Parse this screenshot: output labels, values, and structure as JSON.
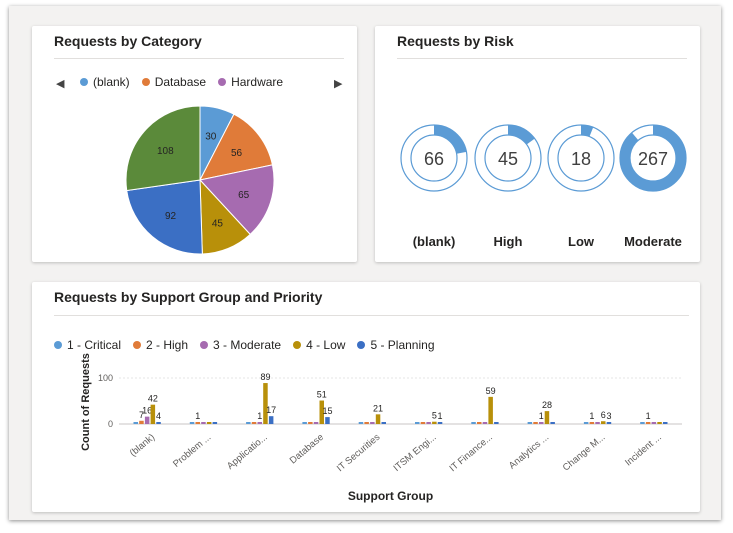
{
  "category_card": {
    "title": "Requests by Category",
    "legend": [
      {
        "label": "(blank)",
        "color": "#5b9bd5"
      },
      {
        "label": "Database",
        "color": "#e07b39"
      },
      {
        "label": "Hardware",
        "color": "#a66bb0"
      }
    ]
  },
  "risk_card": {
    "title": "Requests by Risk"
  },
  "support_card": {
    "title": "Requests by Support Group and Priority",
    "legend": [
      {
        "label": "1 - Critical",
        "color": "#5b9bd5"
      },
      {
        "label": "2 - High",
        "color": "#e07b39"
      },
      {
        "label": "3 - Moderate",
        "color": "#a66bb0"
      },
      {
        "label": "4 - Low",
        "color": "#b8900a"
      },
      {
        "label": "5 - Planning",
        "color": "#3b6fc4"
      }
    ]
  },
  "chart_data": [
    {
      "type": "pie",
      "title": "Requests by Category",
      "slices": [
        {
          "value": 30,
          "color": "#5b9bd5"
        },
        {
          "value": 56,
          "color": "#e07b39"
        },
        {
          "value": 65,
          "color": "#a66bb0"
        },
        {
          "value": 45,
          "color": "#b8900a"
        },
        {
          "value": 92,
          "color": "#3b6fc4"
        },
        {
          "value": 108,
          "color": "#5b8a3a"
        }
      ]
    },
    {
      "type": "gauge",
      "title": "Requests by Risk",
      "max": 300,
      "color": "#5b9bd5",
      "items": [
        {
          "label": "(blank)",
          "value": 66
        },
        {
          "label": "High",
          "value": 45
        },
        {
          "label": "Low",
          "value": 18
        },
        {
          "label": "Moderate",
          "value": 267
        }
      ]
    },
    {
      "type": "bar",
      "title": "Requests by Support Group and Priority",
      "xlabel": "Support Group",
      "ylabel": "Count of Requests",
      "ylim": [
        0,
        100
      ],
      "yticks": [
        0,
        100
      ],
      "categories": [
        "(blank)",
        "Problem ...",
        "Applicatio...",
        "Database",
        "IT Securities",
        "ITSM Engi...",
        "IT Finance...",
        "Analytics ...",
        "Change M...",
        "Incident ..."
      ],
      "series": [
        {
          "name": "1 - Critical",
          "color": "#5b9bd5",
          "values": [
            0,
            0,
            0,
            0,
            0,
            0,
            0,
            0,
            0,
            0
          ]
        },
        {
          "name": "2 - High",
          "color": "#e07b39",
          "values": [
            7,
            1,
            0,
            0,
            0,
            0,
            0,
            0,
            1,
            1
          ]
        },
        {
          "name": "3 - Moderate",
          "color": "#a66bb0",
          "values": [
            16,
            0,
            1,
            0,
            0,
            0,
            0,
            1,
            0,
            0
          ]
        },
        {
          "name": "4 - Low",
          "color": "#b8900a",
          "values": [
            42,
            0,
            89,
            51,
            21,
            5,
            59,
            28,
            6,
            0
          ]
        },
        {
          "name": "5 - Planning",
          "color": "#3b6fc4",
          "values": [
            4,
            0,
            17,
            15,
            0,
            1,
            0,
            0,
            3,
            0
          ]
        }
      ]
    }
  ]
}
